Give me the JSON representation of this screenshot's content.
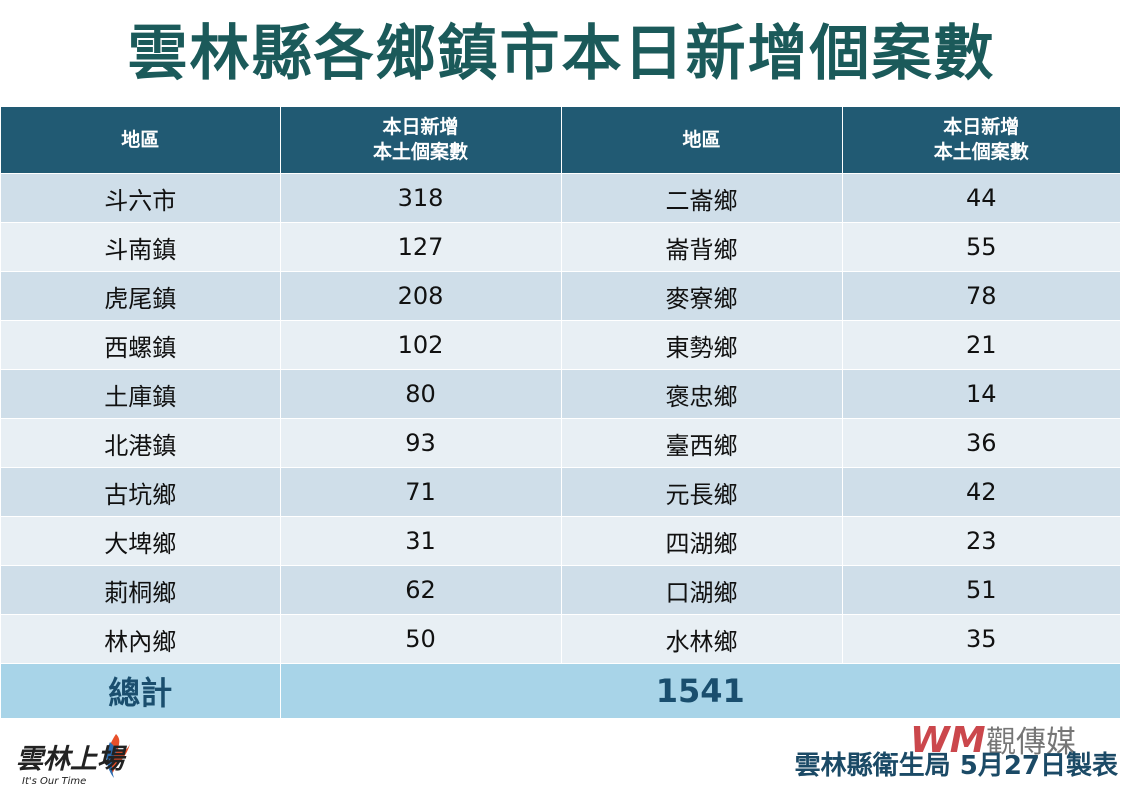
{
  "title": "雲林縣各鄉鎮市本日新增個案數",
  "table": {
    "headers": [
      {
        "line1": "地區",
        "line2": ""
      },
      {
        "line1": "本日新增",
        "line2": "本土個案數"
      },
      {
        "line1": "地區",
        "line2": ""
      },
      {
        "line1": "本日新增",
        "line2": "本土個案數"
      }
    ],
    "rows": [
      {
        "area_left": "斗六市",
        "count_left": "318",
        "area_right": "二崙鄉",
        "count_right": "44"
      },
      {
        "area_left": "斗南鎮",
        "count_left": "127",
        "area_right": "崙背鄉",
        "count_right": "55"
      },
      {
        "area_left": "虎尾鎮",
        "count_left": "208",
        "area_right": "麥寮鄉",
        "count_right": "78"
      },
      {
        "area_left": "西螺鎮",
        "count_left": "102",
        "area_right": "東勢鄉",
        "count_right": "21"
      },
      {
        "area_left": "土庫鎮",
        "count_left": "80",
        "area_right": "褒忠鄉",
        "count_right": "14"
      },
      {
        "area_left": "北港鎮",
        "count_left": "93",
        "area_right": "臺西鄉",
        "count_right": "36"
      },
      {
        "area_left": "古坑鄉",
        "count_left": "71",
        "area_right": "元長鄉",
        "count_right": "42"
      },
      {
        "area_left": "大埤鄉",
        "count_left": "31",
        "area_right": "四湖鄉",
        "count_right": "23"
      },
      {
        "area_left": "莿桐鄉",
        "count_left": "62",
        "area_right": "口湖鄉",
        "count_right": "51"
      },
      {
        "area_left": "林內鄉",
        "count_left": "50",
        "area_right": "水林鄉",
        "count_right": "35"
      }
    ],
    "total_label": "總計",
    "total_value": "1541"
  },
  "logo_left": {
    "main": "雲林上場",
    "tagline": "It's Our Time"
  },
  "logo_right": {
    "mark": "WM",
    "name": "觀傳媒"
  },
  "credit": "雲林縣衛生局  5月27日製表",
  "colors": {
    "title": "#1b5a5a",
    "header_bg": "#215a73",
    "row_odd": "#cfdee9",
    "row_even": "#e8eff4",
    "total_bg": "#a8d4e8",
    "credit": "#1b4a66"
  }
}
